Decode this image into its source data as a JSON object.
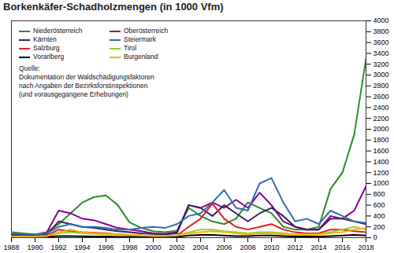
{
  "chart_data": {
    "type": "line",
    "title": "Borkenkäfer-Schadholzmengen  (in 1000 Vfm)",
    "x": [
      1988,
      1989,
      1990,
      1991,
      1992,
      1993,
      1994,
      1995,
      1996,
      1997,
      1998,
      1999,
      2000,
      2001,
      2002,
      2003,
      2004,
      2005,
      2006,
      2007,
      2008,
      2009,
      2010,
      2011,
      2012,
      2013,
      2014,
      2015,
      2016,
      2017,
      2018
    ],
    "xlim": [
      1988,
      2018
    ],
    "xticks": [
      1988,
      1990,
      1992,
      1994,
      1996,
      1998,
      2000,
      2002,
      2004,
      2006,
      2008,
      2010,
      2012,
      2014,
      2016,
      2018
    ],
    "ylim": [
      0,
      4000
    ],
    "yticks": [
      0,
      200,
      400,
      600,
      800,
      1000,
      1200,
      1400,
      1600,
      1800,
      2000,
      2200,
      2400,
      2600,
      2800,
      3000,
      3200,
      3400,
      3600,
      3800,
      4000
    ],
    "legend": "top-left",
    "annotations": [
      "Quelle:",
      "Dokumentation der Waldschädigungsfaktoren",
      "nach Angaben der Bezirksforstinspektionen",
      "(und vorausgegangene Erhebungen)"
    ],
    "series": [
      {
        "name": "Niederösterreich",
        "color": "#2e8b2e",
        "values": [
          100,
          80,
          60,
          100,
          250,
          450,
          650,
          750,
          780,
          600,
          280,
          180,
          120,
          100,
          130,
          550,
          400,
          300,
          250,
          350,
          650,
          550,
          450,
          200,
          150,
          150,
          200,
          900,
          1200,
          1900,
          3300
        ]
      },
      {
        "name": "Oberösterreich",
        "color": "#8b008b",
        "values": [
          50,
          50,
          40,
          100,
          500,
          450,
          350,
          320,
          250,
          180,
          150,
          120,
          80,
          70,
          100,
          600,
          550,
          650,
          550,
          700,
          550,
          830,
          600,
          300,
          200,
          150,
          150,
          400,
          350,
          500,
          950
        ]
      },
      {
        "name": "Kärnten",
        "color": "#3a1f5a",
        "values": [
          50,
          40,
          40,
          60,
          300,
          250,
          200,
          180,
          150,
          120,
          100,
          80,
          70,
          60,
          80,
          600,
          550,
          400,
          600,
          450,
          300,
          450,
          550,
          400,
          200,
          150,
          150,
          350,
          350,
          300,
          250
        ]
      },
      {
        "name": "Steiermark",
        "color": "#2f6fb5",
        "values": [
          80,
          70,
          60,
          80,
          200,
          250,
          200,
          200,
          180,
          150,
          150,
          180,
          200,
          180,
          250,
          400,
          450,
          650,
          880,
          550,
          500,
          1000,
          1100,
          650,
          300,
          350,
          250,
          500,
          400,
          300,
          270
        ]
      },
      {
        "name": "Salzburg",
        "color": "#e02020",
        "values": [
          30,
          30,
          25,
          40,
          150,
          120,
          100,
          90,
          80,
          60,
          50,
          40,
          30,
          30,
          40,
          200,
          350,
          630,
          350,
          200,
          150,
          200,
          250,
          150,
          100,
          80,
          80,
          150,
          150,
          120,
          100
        ]
      },
      {
        "name": "Tirol",
        "color": "#9acd32",
        "values": [
          20,
          20,
          20,
          30,
          80,
          100,
          80,
          70,
          60,
          50,
          40,
          30,
          30,
          30,
          40,
          100,
          150,
          150,
          120,
          100,
          80,
          100,
          100,
          80,
          60,
          60,
          60,
          100,
          150,
          200,
          150
        ]
      },
      {
        "name": "Vorarlberg",
        "color": "#000000",
        "values": [
          10,
          10,
          10,
          15,
          30,
          30,
          25,
          20,
          20,
          15,
          15,
          10,
          10,
          10,
          15,
          40,
          50,
          50,
          40,
          30,
          30,
          40,
          40,
          30,
          20,
          20,
          20,
          30,
          40,
          50,
          40
        ]
      },
      {
        "name": "Burgenland",
        "color": "#f0b400",
        "values": [
          20,
          20,
          20,
          30,
          100,
          150,
          100,
          80,
          70,
          60,
          50,
          40,
          30,
          30,
          40,
          80,
          100,
          120,
          100,
          80,
          60,
          80,
          80,
          60,
          50,
          50,
          60,
          80,
          100,
          150,
          180
        ]
      }
    ]
  }
}
